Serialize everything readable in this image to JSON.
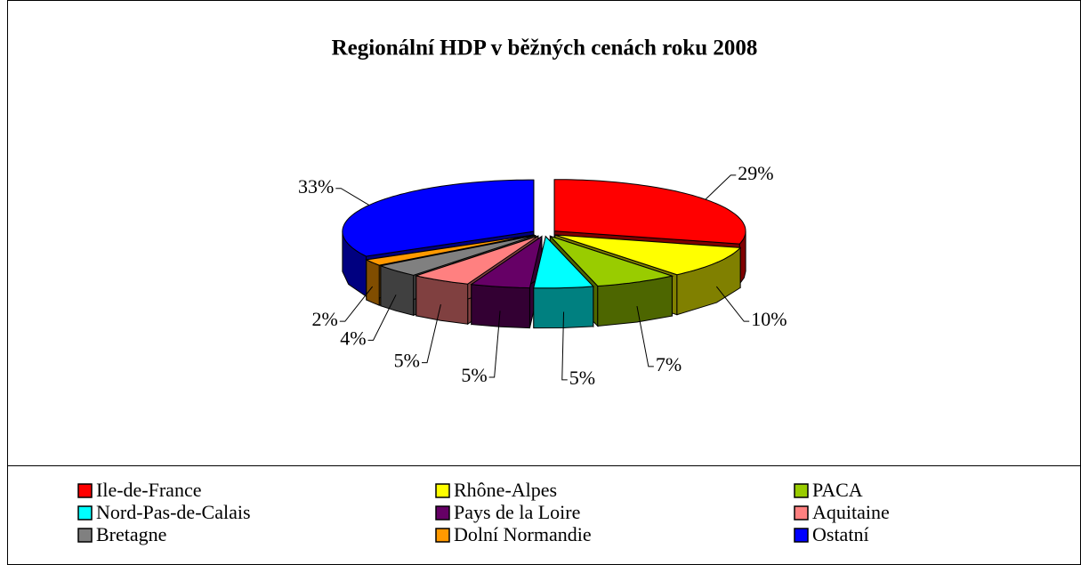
{
  "chart_data": {
    "type": "pie3d",
    "title": "Regionální HDP v běžných cenách roku 2008",
    "categories": [
      "Ile-de-France",
      "Rhône-Alpes",
      "PACA",
      "Nord-Pas-de-Calais",
      "Pays de la Loire",
      "Aquitaine",
      "Bretagne",
      "Dolní Normandie",
      "Ostatní"
    ],
    "values": [
      29,
      10,
      7,
      5,
      5,
      5,
      4,
      2,
      33
    ],
    "value_labels": [
      "29%",
      "10%",
      "7%",
      "5%",
      "5%",
      "5%",
      "4%",
      "2%",
      "33%"
    ],
    "colors": [
      "#ff0000",
      "#ffff00",
      "#99cc00",
      "#00ffff",
      "#660066",
      "#ff8080",
      "#808080",
      "#ff9900",
      "#0000ff"
    ],
    "legend": "bottom"
  }
}
